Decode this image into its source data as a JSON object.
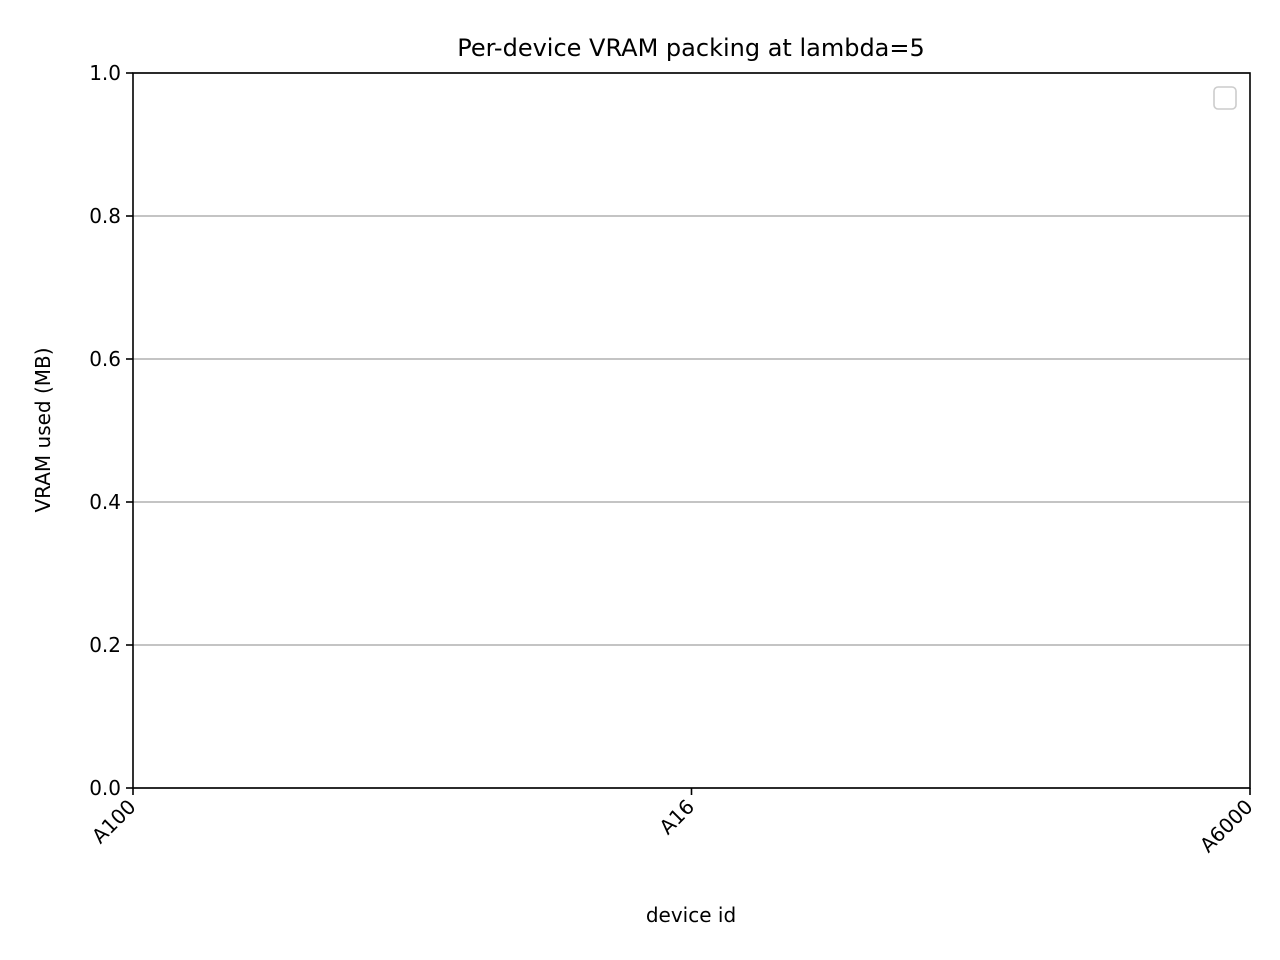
{
  "chart_data": {
    "type": "bar",
    "title": "Per-device VRAM packing at lambda=5",
    "xlabel": "device id",
    "ylabel": "VRAM used (MB)",
    "categories": [
      "A100",
      "A16",
      "A6000"
    ],
    "series": [],
    "ylim": [
      0,
      1.0
    ],
    "yticks": [
      0.0,
      0.2,
      0.4,
      0.6,
      0.8,
      1.0
    ],
    "ytick_labels": [
      "0.0",
      "0.2",
      "0.4",
      "0.6",
      "0.8",
      "1.0"
    ],
    "grid": "y",
    "legend": {
      "placement": "top-right",
      "entries": []
    },
    "colors": {
      "grid": "#b0b0b0",
      "axis": "#000000",
      "legend_border": "#cccccc"
    }
  }
}
